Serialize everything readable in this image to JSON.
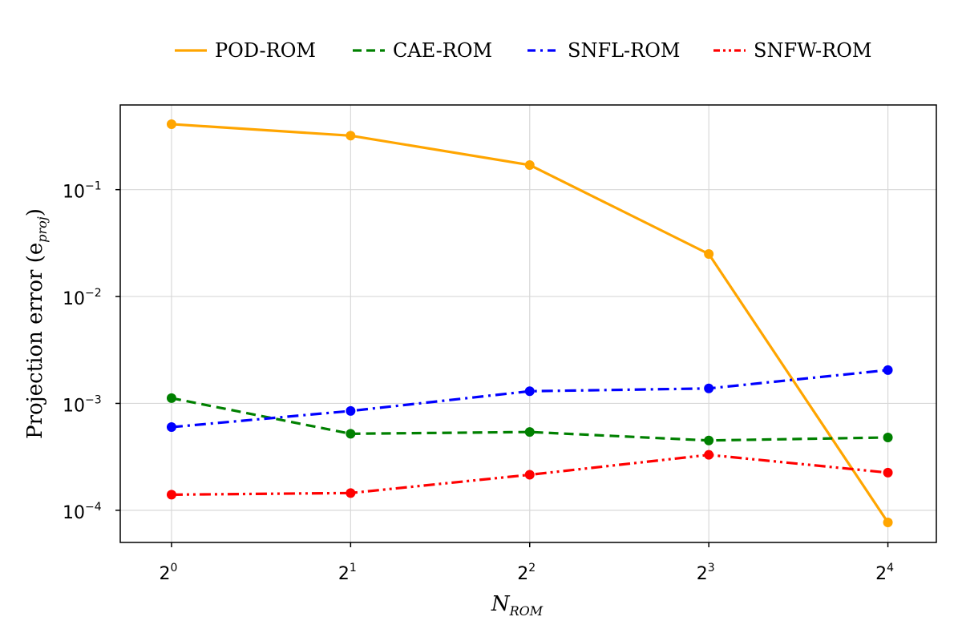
{
  "chart_data": {
    "type": "line",
    "xscale": "log2",
    "yscale": "log10",
    "x": [
      1,
      2,
      4,
      8,
      16
    ],
    "xticks": [
      {
        "value": 1,
        "base": "2",
        "exp": "0"
      },
      {
        "value": 2,
        "base": "2",
        "exp": "1"
      },
      {
        "value": 4,
        "base": "2",
        "exp": "2"
      },
      {
        "value": 8,
        "base": "2",
        "exp": "3"
      },
      {
        "value": 16,
        "base": "2",
        "exp": "4"
      }
    ],
    "yticks": [
      {
        "value": 0.1,
        "base": "10",
        "exp": "−1"
      },
      {
        "value": 0.01,
        "base": "10",
        "exp": "−2"
      },
      {
        "value": 0.001,
        "base": "10",
        "exp": "−3"
      },
      {
        "value": 0.0001,
        "base": "10",
        "exp": "−4"
      }
    ],
    "xlim": [
      0.82,
      19.3
    ],
    "ylim": [
      5e-05,
      0.62
    ],
    "grid": true,
    "legend_position": "top",
    "xlabel": {
      "main": "N",
      "sub": "ROM"
    },
    "ylabel": {
      "main": "Projection error (e",
      "sub": "proj",
      "close": ")"
    },
    "series": [
      {
        "name": "POD-ROM",
        "color": "#FFA500",
        "dash": "solid",
        "values": [
          0.41,
          0.32,
          0.17,
          0.025,
          7.7e-05
        ]
      },
      {
        "name": "CAE-ROM",
        "color": "#008000",
        "dash": "dash",
        "values": [
          0.00112,
          0.00052,
          0.00054,
          0.00045,
          0.00048
        ]
      },
      {
        "name": "SNFL-ROM",
        "color": "#0000FF",
        "dash": "dashdot",
        "values": [
          0.0006,
          0.00085,
          0.0013,
          0.00138,
          0.00205
        ]
      },
      {
        "name": "SNFW-ROM",
        "color": "#FF0000",
        "dash": "dashdotdot",
        "values": [
          0.00014,
          0.000145,
          0.000215,
          0.00033,
          0.000225
        ]
      }
    ]
  }
}
